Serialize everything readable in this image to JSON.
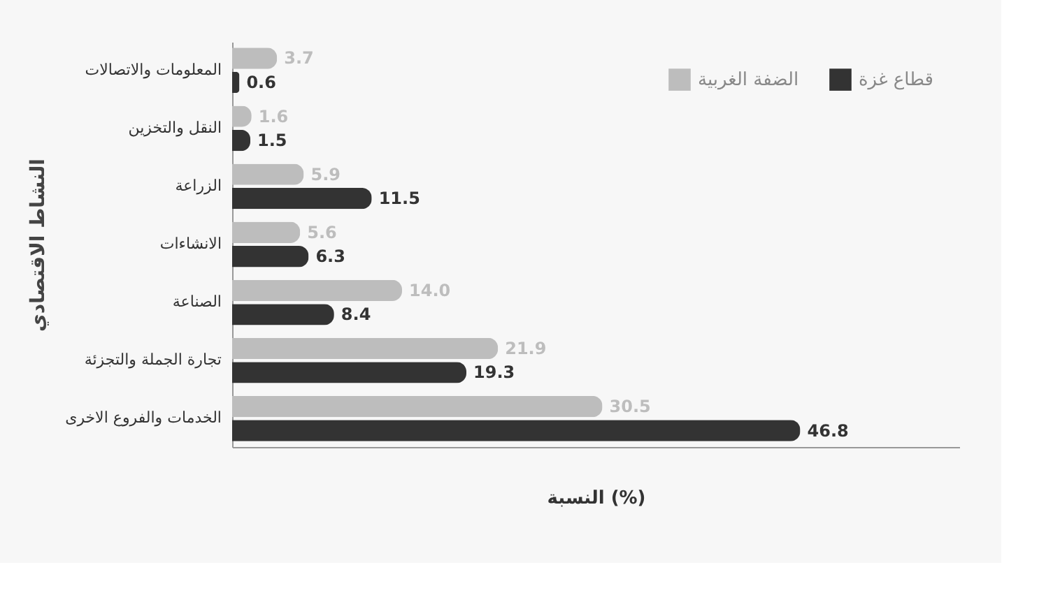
{
  "chart_data": {
    "type": "bar",
    "orientation": "horizontal",
    "ylabel": "النشاط الاقتصادي",
    "xlabel": "النسبة (%)",
    "categories": [
      "المعلومات والاتصالات",
      "النقل والتخزين",
      "الزراعة",
      "الانشاءات",
      "الصناعة",
      "تجارة الجملة والتجزئة",
      "الخدمات والفروع الاخرى"
    ],
    "series": [
      {
        "name": "الضفة الغربية",
        "color": "#bdbdbd",
        "values": [
          3.7,
          1.6,
          5.9,
          5.6,
          14.0,
          21.9,
          30.5
        ],
        "value_labels": [
          "3.7",
          "1.6",
          "5.9",
          "5.6",
          "14.0",
          "21.9",
          "30.5"
        ]
      },
      {
        "name": "قطاع غزة",
        "color": "#333333",
        "values": [
          0.6,
          1.5,
          11.5,
          6.3,
          8.4,
          19.3,
          46.8
        ],
        "value_labels": [
          "0.6",
          "1.5",
          "11.5",
          "6.3",
          "8.4",
          "19.3",
          "46.8"
        ]
      }
    ],
    "legend": "top right",
    "grid": false,
    "tick_labels": "y"
  }
}
